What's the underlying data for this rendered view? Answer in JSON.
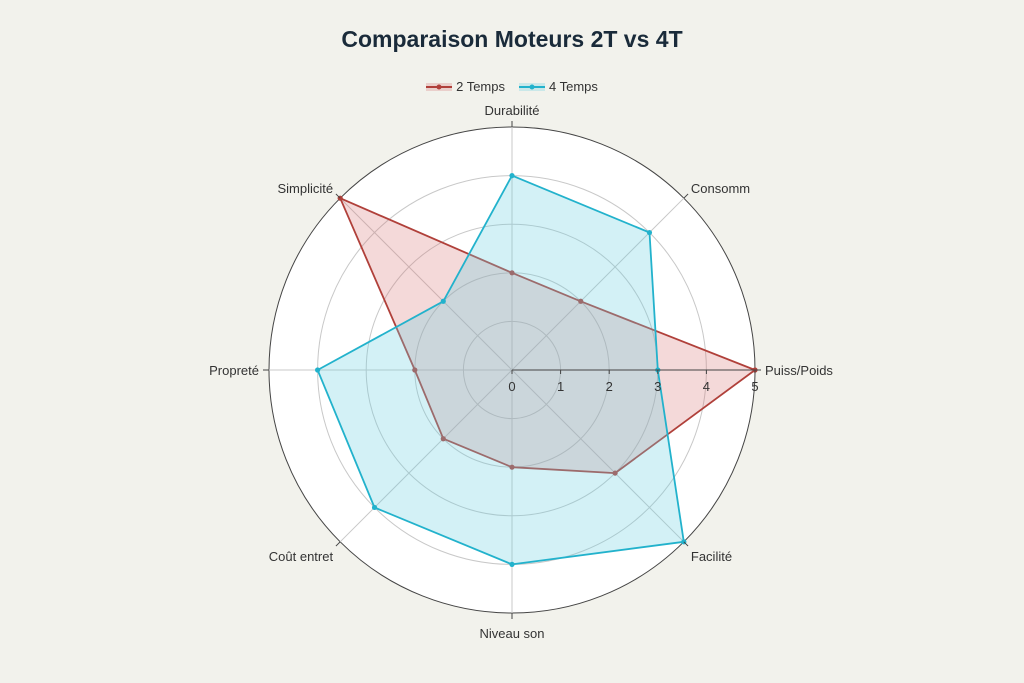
{
  "chart_data": {
    "type": "radar",
    "title": "Comparaison Moteurs 2T vs 4T",
    "axes": [
      "Puiss/Poids",
      "Consomm",
      "Durabilité",
      "Simplicité",
      "Propreté",
      "Coût entret",
      "Niveau son",
      "Facilité"
    ],
    "rlim": [
      0,
      5
    ],
    "ticks": [
      "0",
      "1",
      "2",
      "3",
      "4",
      "5"
    ],
    "legend_position": "top-center",
    "series": [
      {
        "name": "2 Temps",
        "values": [
          5,
          2,
          2,
          5,
          2,
          2,
          2,
          3
        ],
        "color": "#b0403a",
        "fill": "rgba(214,120,120,0.28)"
      },
      {
        "name": "4 Temps",
        "values": [
          3,
          4,
          4,
          2,
          4,
          4,
          4,
          5
        ],
        "color": "#22b2cc",
        "fill": "rgba(110,210,225,0.30)"
      }
    ]
  }
}
